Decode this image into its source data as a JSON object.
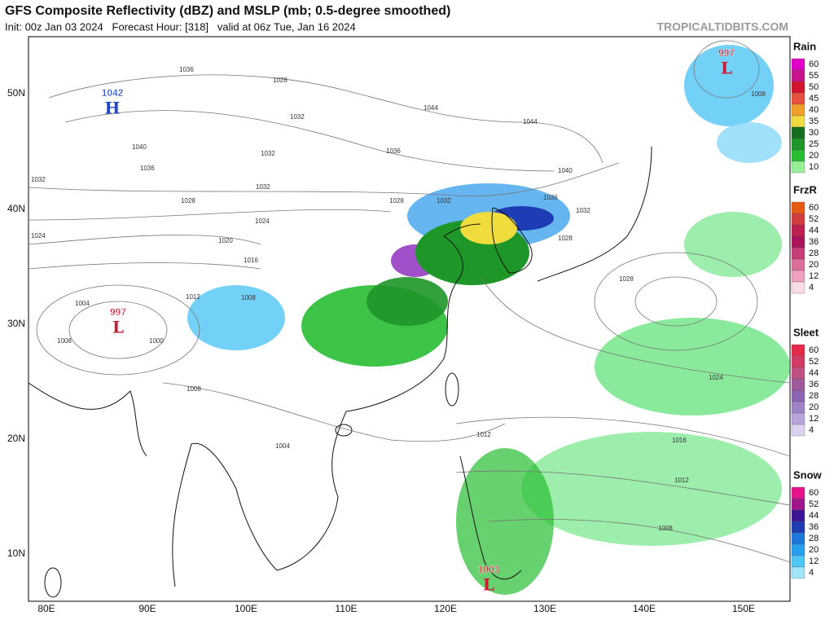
{
  "header": {
    "title": "GFS Composite Reflectivity (dBZ) and MSLP (mb; 0.5-degree smoothed)",
    "subtitle": "Init: 00z Jan 03 2024   Forecast Hour: [318]   valid at 06z Tue, Jan 16 2024",
    "source": "TROPICALTIDBITS.COM"
  },
  "axes": {
    "lat_labels": [
      "50N",
      "40N",
      "30N",
      "20N",
      "10N"
    ],
    "lon_labels": [
      "80E",
      "90E",
      "100E",
      "110E",
      "120E",
      "130E",
      "140E",
      "150E"
    ]
  },
  "legends": [
    {
      "title": "Rain",
      "levels": [
        60,
        55,
        50,
        45,
        40,
        35,
        30,
        25,
        20,
        10
      ],
      "colors": [
        "#e000c8",
        "#c8148c",
        "#d2142d",
        "#e6503c",
        "#f0a028",
        "#f0dc3c",
        "#146e1e",
        "#1e9628",
        "#28be32",
        "#96f096"
      ]
    },
    {
      "title": "FrzR",
      "levels": [
        60,
        52,
        44,
        36,
        28,
        20,
        12,
        4
      ],
      "colors": [
        "#e65a14",
        "#d23c3c",
        "#be1e50",
        "#aa145a",
        "#c83c78",
        "#dc6e9b",
        "#f0a0be",
        "#fadce6"
      ]
    },
    {
      "title": "Sleet",
      "levels": [
        60,
        52,
        44,
        36,
        28,
        20,
        12,
        4
      ],
      "colors": [
        "#e6284b",
        "#d23c64",
        "#be5082",
        "#a05a9b",
        "#8c64b4",
        "#a082c8",
        "#b9a5dc",
        "#dcd2f0"
      ]
    },
    {
      "title": "Snow",
      "levels": [
        60,
        52,
        44,
        36,
        28,
        20,
        12,
        4
      ],
      "colors": [
        "#e6148c",
        "#a0148c",
        "#3c1496",
        "#1e3cb4",
        "#1e78dc",
        "#28a0f0",
        "#50c8f5",
        "#a0e6fa"
      ]
    }
  ],
  "pressure_centers": [
    {
      "value": 1042,
      "letter": "H"
    },
    {
      "value": 997,
      "letter": "L"
    },
    {
      "value": 997,
      "letter": "L"
    },
    {
      "value": 1003,
      "letter": "L"
    }
  ],
  "isobar_labels": [
    1036,
    1028,
    1032,
    1032,
    1040,
    1036,
    1032,
    1024,
    1028,
    1020,
    1024,
    1016,
    1032,
    1044,
    1044,
    1036,
    1028,
    1032,
    1040,
    1036,
    1032,
    1028,
    1028,
    1024,
    1016,
    1012,
    1008,
    1012,
    1008,
    1004,
    1004,
    1000,
    1008,
    1008,
    1008,
    1012
  ]
}
